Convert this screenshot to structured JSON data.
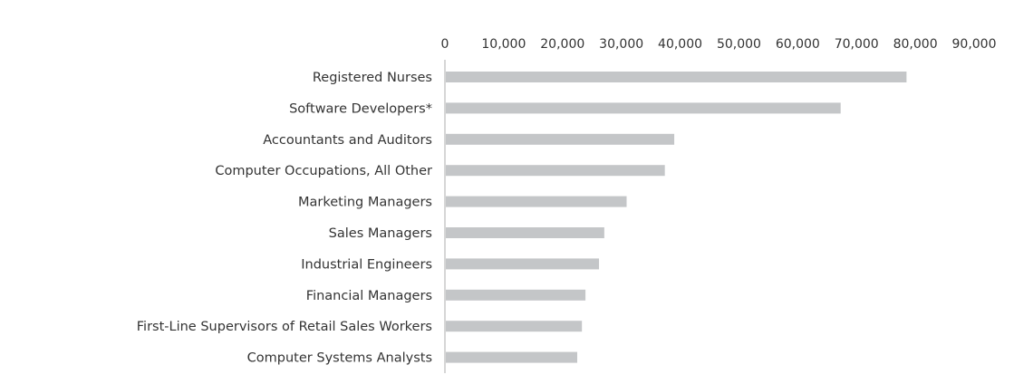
{
  "chart_data": {
    "type": "bar",
    "orientation": "horizontal",
    "categories": [
      "Registered Nurses",
      "Software Developers*",
      "Accountants and Auditors",
      "Computer Occupations, All Other",
      "Marketing Managers",
      "Sales Managers",
      "Industrial Engineers",
      "Financial Managers",
      "First-Line Supervisors of Retail Sales Workers",
      "Computer Systems Analysts"
    ],
    "values": [
      78500,
      67300,
      39000,
      37400,
      30900,
      27100,
      26200,
      23900,
      23300,
      22500
    ],
    "xlim": [
      0,
      90000
    ],
    "xticks": [
      0,
      10000,
      20000,
      30000,
      40000,
      50000,
      60000,
      70000,
      80000,
      90000
    ],
    "xtick_labels": [
      "0",
      "10,000",
      "20,000",
      "30,000",
      "40,000",
      "50,000",
      "60,000",
      "70,000",
      "80,000",
      "90,000"
    ],
    "axis_position": "top",
    "grid": false,
    "legend": "none",
    "colors": {
      "bar": "#c4c6c8",
      "axis": "#c9c9c9",
      "text": "#333333"
    }
  }
}
